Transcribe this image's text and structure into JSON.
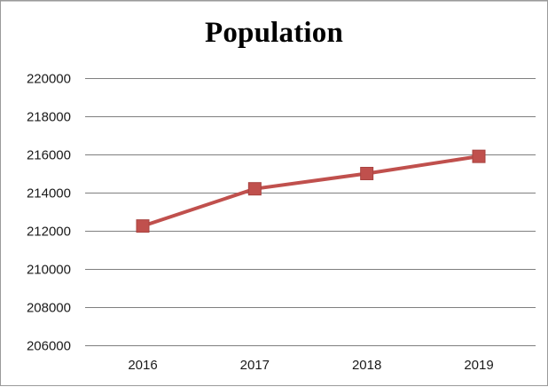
{
  "chart_data": {
    "type": "line",
    "title": "Population",
    "xlabel": "",
    "ylabel": "",
    "categories": [
      "2016",
      "2017",
      "2018",
      "2019"
    ],
    "series": [
      {
        "values": [
          212250,
          214200,
          215000,
          215900
        ]
      }
    ],
    "ylim": [
      206000,
      220000
    ],
    "yticks": [
      206000,
      208000,
      210000,
      212000,
      214000,
      216000,
      218000,
      220000
    ],
    "grid": "horizontal",
    "legend": "none",
    "colors": {
      "line": "#c0504d",
      "marker": "#c0504d",
      "grid": "#7f7f7f"
    },
    "marker": "square"
  }
}
